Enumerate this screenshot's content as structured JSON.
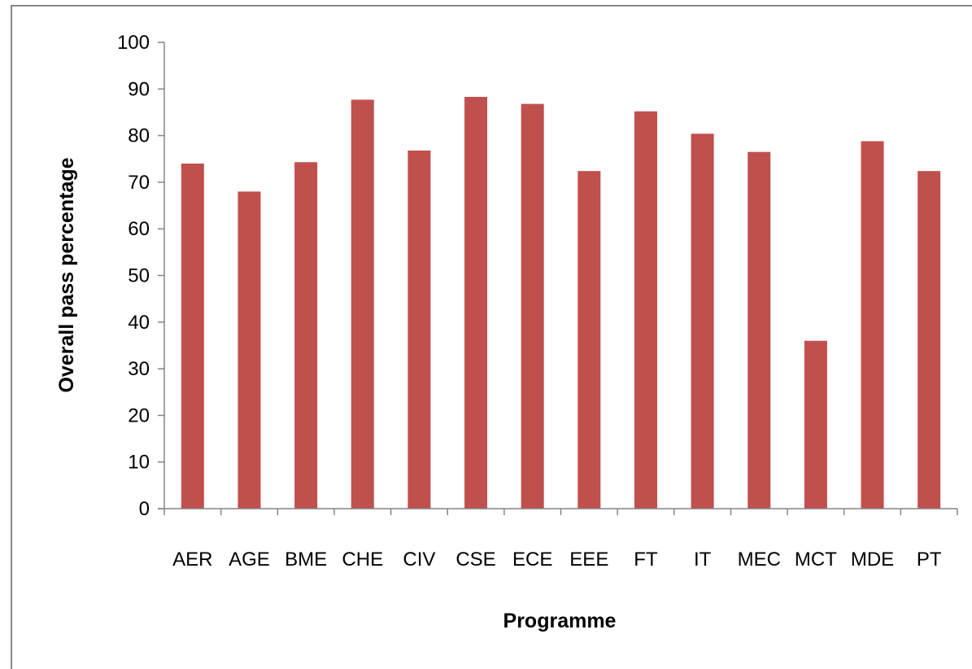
{
  "chart_data": {
    "type": "bar",
    "title": "",
    "xlabel": "Programme",
    "ylabel": "Overall pass percentage",
    "categories": [
      "AER",
      "AGE",
      "BME",
      "CHE",
      "CIV",
      "CSE",
      "ECE",
      "EEE",
      "FT",
      "IT",
      "MEC",
      "MCT",
      "MDE",
      "PT"
    ],
    "values": [
      74,
      68,
      74.3,
      87.7,
      76.8,
      88.3,
      86.8,
      72.4,
      85.2,
      80.4,
      76.5,
      36,
      78.8,
      72.4
    ],
    "ylim": [
      0,
      100
    ],
    "yticks": [
      0,
      10,
      20,
      30,
      40,
      50,
      60,
      70,
      80,
      90,
      100
    ],
    "grid": false,
    "legend": "none",
    "bar_color": "#C0504D",
    "axis_color": "#868686"
  }
}
